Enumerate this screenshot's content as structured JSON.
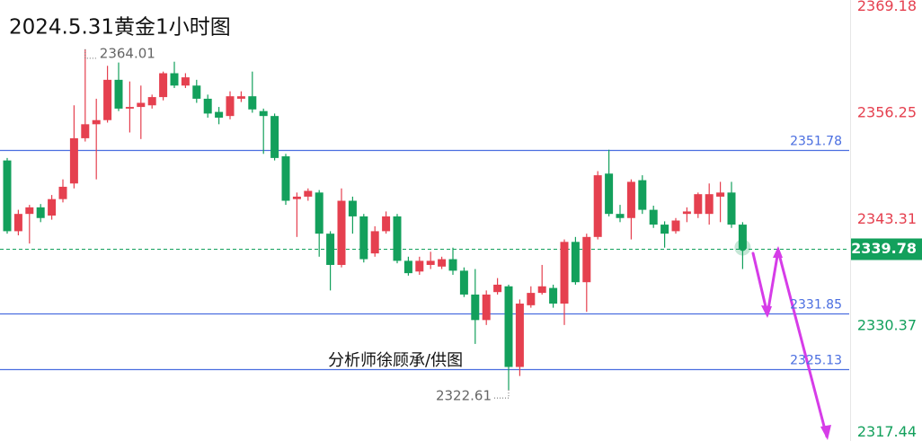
{
  "chart_data": {
    "type": "candlestick",
    "title": "2024.5.31黄金1小时图",
    "watermark": "分析师徐顾承/供图",
    "up_color": "#e5404f",
    "down_color": "#13a05c",
    "series": [
      {
        "open": [
          2350.5,
          2341.9,
          2344.0,
          2344.8,
          2343.8,
          2345.8,
          2347.7,
          2353.2,
          2354.9,
          2355.4,
          2360.3,
          2356.8,
          2357.0,
          2357.2,
          2358.2,
          2361.1,
          2359.6,
          2359.6,
          2358.0,
          2356.4,
          2355.9,
          2358.0,
          2358.3,
          2356.5,
          2355.9,
          2351.0,
          2345.8,
          2346.1,
          2346.6,
          2341.6,
          2337.8,
          2345.6,
          2343.7,
          2339.2,
          2341.9,
          2343.7,
          2338.3,
          2337.0,
          2337.8,
          2337.6,
          2338.5,
          2337.1,
          2334.2,
          2331.1,
          2334.5,
          2335.2,
          2325.4,
          2332.9,
          2334.4,
          2335.0,
          2333.1,
          2340.6,
          2335.7,
          2341.2,
          2348.9,
          2344.0,
          2343.5,
          2348.1,
          2344.5,
          2342.7,
          2341.9,
          2344.0,
          2344.0,
          2344.0,
          2346.1,
          2346.6,
          2342.7
        ],
        "high": [
          2350.8,
          2344.5,
          2345.1,
          2345.2,
          2346.3,
          2348.2,
          2357.2,
          2364.01,
          2358.0,
          2362.0,
          2362.4,
          2360.1,
          2359.6,
          2358.5,
          2361.3,
          2362.5,
          2361.1,
          2360.3,
          2358.5,
          2357.0,
          2358.9,
          2358.9,
          2361.3,
          2356.8,
          2356.2,
          2351.3,
          2346.6,
          2347.1,
          2346.9,
          2341.9,
          2347.1,
          2346.1,
          2344.0,
          2342.5,
          2344.3,
          2344.0,
          2338.8,
          2338.8,
          2339.4,
          2338.8,
          2339.9,
          2337.5,
          2337.3,
          2334.7,
          2336.2,
          2335.4,
          2333.6,
          2335.2,
          2337.8,
          2335.4,
          2340.9,
          2341.2,
          2341.6,
          2349.2,
          2351.8,
          2345.1,
          2348.2,
          2348.7,
          2345.0,
          2343.1,
          2343.5,
          2344.8,
          2346.6,
          2347.7,
          2347.9,
          2347.9,
          2343.0
        ],
        "low": [
          2341.6,
          2341.4,
          2340.4,
          2343.0,
          2343.3,
          2345.4,
          2347.1,
          2352.8,
          2348.2,
          2355.1,
          2356.5,
          2353.9,
          2353.1,
          2356.8,
          2357.8,
          2359.3,
          2359.3,
          2357.5,
          2355.7,
          2354.9,
          2355.5,
          2357.6,
          2356.3,
          2351.3,
          2350.5,
          2345.1,
          2341.2,
          2345.6,
          2338.8,
          2334.7,
          2337.5,
          2341.6,
          2338.1,
          2338.8,
          2341.6,
          2338.0,
          2336.5,
          2336.6,
          2337.3,
          2337.3,
          2336.6,
          2333.9,
          2328.2,
          2330.5,
          2334.2,
          2322.61,
          2324.3,
          2332.6,
          2334.2,
          2332.6,
          2330.5,
          2335.4,
          2332.1,
          2340.9,
          2343.7,
          2343.0,
          2340.9,
          2344.0,
          2342.3,
          2339.9,
          2341.6,
          2343.0,
          2343.5,
          2342.7,
          2343.0,
          2342.3,
          2337.3
        ],
        "close": [
          2341.9,
          2344.0,
          2344.8,
          2343.5,
          2345.8,
          2347.3,
          2353.2,
          2354.9,
          2355.4,
          2360.3,
          2356.8,
          2357.0,
          2357.5,
          2358.2,
          2361.1,
          2359.6,
          2360.6,
          2358.0,
          2356.2,
          2355.7,
          2358.3,
          2358.3,
          2356.7,
          2355.9,
          2350.8,
          2345.6,
          2346.1,
          2346.8,
          2341.6,
          2337.8,
          2345.6,
          2343.7,
          2338.5,
          2341.9,
          2343.7,
          2338.3,
          2336.8,
          2338.3,
          2338.3,
          2338.5,
          2337.1,
          2334.2,
          2331.1,
          2334.2,
          2335.4,
          2325.4,
          2333.1,
          2334.4,
          2335.2,
          2333.1,
          2340.6,
          2335.7,
          2341.2,
          2348.7,
          2344.0,
          2343.5,
          2347.9,
          2344.5,
          2342.7,
          2341.6,
          2343.2,
          2344.3,
          2346.4,
          2346.4,
          2346.6,
          2342.7,
          2339.78
        ]
      }
    ],
    "ylim": [
      2316.4,
      2370.0
    ],
    "yticks": [
      2369.18,
      2356.25,
      2343.31,
      2330.37,
      2317.44
    ],
    "levels": [
      2351.78,
      2331.85,
      2325.13
    ],
    "level_color": "#4a6ee0"
  }
}
